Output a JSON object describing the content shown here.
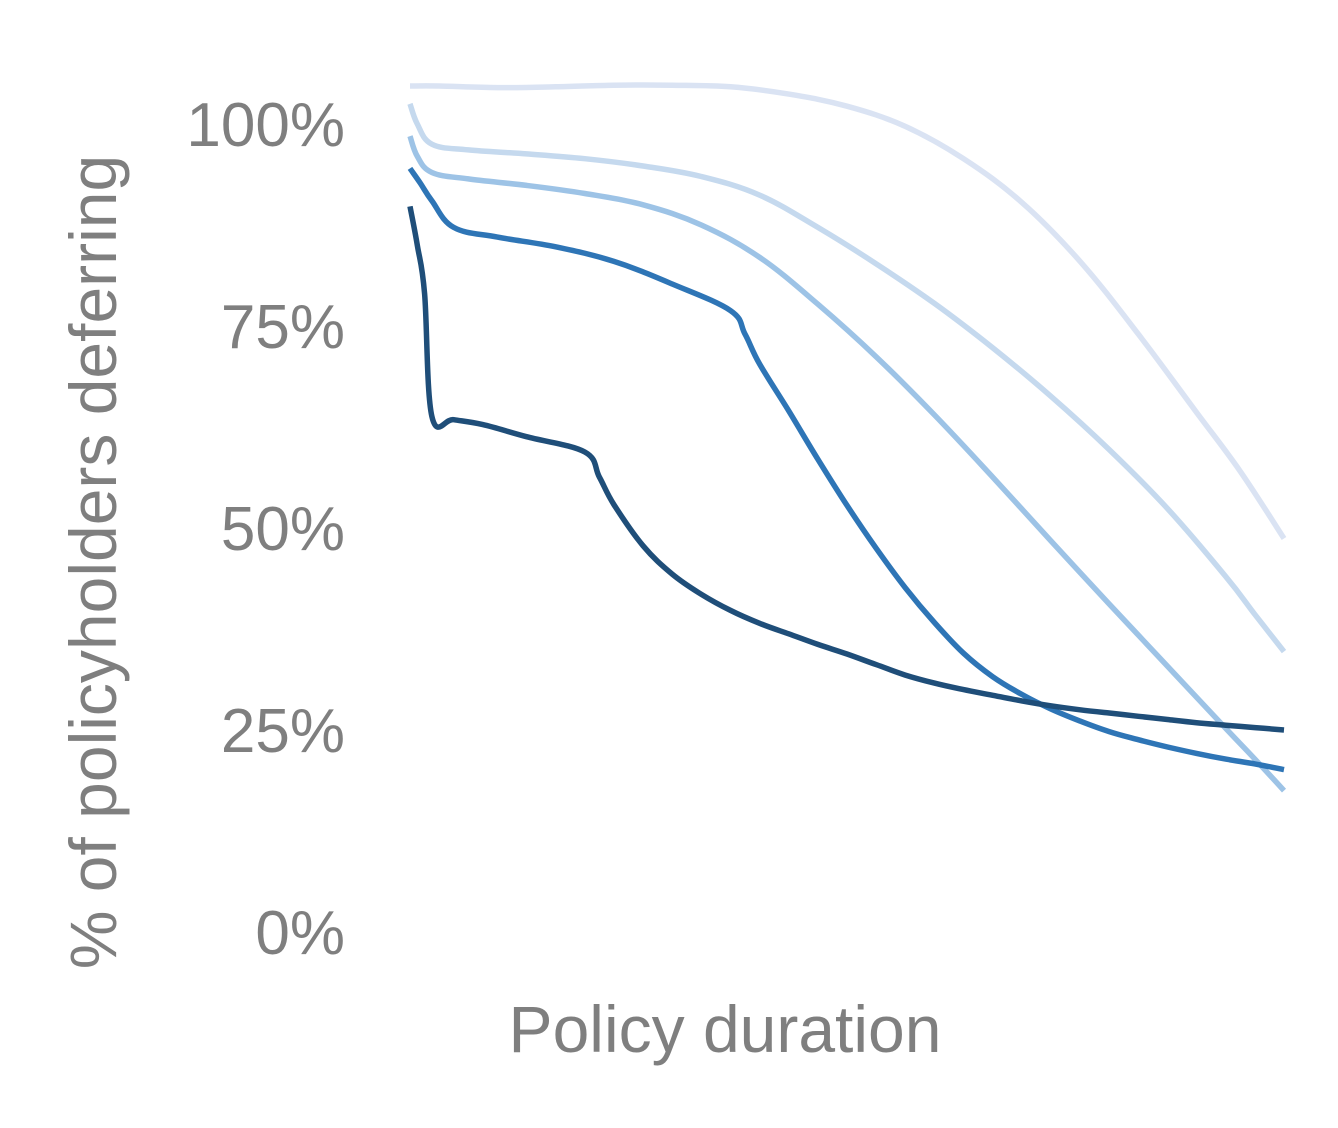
{
  "chart_data": {
    "type": "line",
    "title": "",
    "xlabel": "Policy duration",
    "ylabel": "% of policyholders deferring",
    "yticks": [
      "0%",
      "25%",
      "50%",
      "75%",
      "100%"
    ],
    "ytick_values": [
      0,
      25,
      50,
      75,
      100
    ],
    "ylim": [
      0,
      108
    ],
    "xlim": [
      0,
      60
    ],
    "x_tick_labels_shown": false,
    "grid": false,
    "legend": "none",
    "series": [
      {
        "color": "#dae3f3",
        "x": [
          0,
          2,
          6,
          10,
          14,
          18,
          22,
          26,
          30,
          34,
          38,
          42,
          46,
          50,
          54,
          57,
          60
        ],
        "y": [
          104.7,
          104.7,
          104.5,
          104.6,
          104.8,
          104.8,
          104.6,
          103.7,
          102.2,
          99.7,
          95.7,
          90.3,
          83,
          74,
          64.3,
          57,
          48.7
        ]
      },
      {
        "color": "#c5d9ee",
        "x": [
          0,
          0.5,
          1.5,
          4,
          8,
          12,
          16,
          20,
          24,
          28,
          32,
          36,
          40,
          44,
          48,
          52,
          56,
          58,
          60
        ],
        "y": [
          102.5,
          100,
          97.5,
          96.8,
          96.3,
          95.7,
          94.8,
          93.5,
          91.2,
          87.2,
          82.7,
          77.8,
          72.3,
          66.3,
          59.7,
          52.4,
          44,
          39.3,
          34.7
        ]
      },
      {
        "color": "#9dc3e6",
        "x": [
          0,
          0.5,
          1.5,
          4,
          8,
          12,
          16,
          20,
          24,
          28,
          32,
          36,
          40,
          44,
          48,
          52,
          56,
          58,
          60
        ],
        "y": [
          98.5,
          96,
          94,
          93.2,
          92.4,
          91.4,
          90,
          87.5,
          83.5,
          77.7,
          71.2,
          64,
          56.3,
          48.4,
          40.6,
          32.9,
          25.2,
          21.4,
          17.5
        ]
      },
      {
        "color": "#2e75b6",
        "x": [
          0,
          0.7,
          1.5,
          3,
          6,
          10,
          14,
          18,
          22,
          23,
          24,
          26,
          28,
          30,
          32,
          34,
          36,
          38,
          40,
          42,
          44,
          46,
          48,
          50,
          52,
          54,
          56,
          58,
          60
        ],
        "y": [
          94.5,
          92.7,
          90.5,
          87.2,
          86,
          84.8,
          83,
          80.2,
          76.9,
          74,
          70.3,
          64.5,
          58.5,
          52.8,
          47.5,
          42.6,
          38.3,
          34.5,
          31.6,
          29.4,
          27.6,
          26.1,
          24.8,
          23.8,
          22.9,
          22.1,
          21.4,
          20.8,
          20.1
        ]
      },
      {
        "color": "#1f4e79",
        "x": [
          0,
          0.5,
          1,
          1.5,
          3,
          5,
          8,
          12,
          13,
          14,
          16,
          18,
          20,
          22,
          24,
          26,
          28,
          30,
          32,
          34,
          36,
          38,
          40,
          42,
          44,
          46,
          48,
          50,
          52,
          54,
          56,
          58,
          60
        ],
        "y": [
          89.8,
          85,
          79,
          63.8,
          63.4,
          62.8,
          61.3,
          59.4,
          56.3,
          52.9,
          47.8,
          44.3,
          41.8,
          39.8,
          38.2,
          36.9,
          35.6,
          34.4,
          33.1,
          31.8,
          30.8,
          30.0,
          29.3,
          28.6,
          28.0,
          27.5,
          27.1,
          26.7,
          26.3,
          25.9,
          25.6,
          25.3,
          25.0
        ]
      }
    ]
  }
}
